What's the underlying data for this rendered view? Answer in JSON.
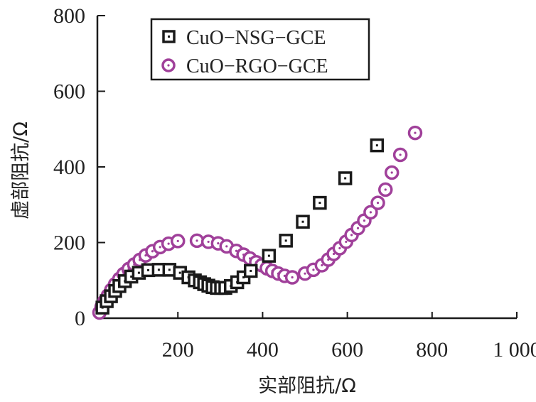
{
  "chart_data": {
    "type": "scatter",
    "title": "",
    "xlabel": "实部阻抗/Ω",
    "ylabel": "虚部阻抗/Ω",
    "xlim": [
      10,
      1000
    ],
    "ylim": [
      0,
      800
    ],
    "x_ticks": [
      200,
      400,
      600,
      800,
      1000
    ],
    "x_tick_labels": [
      "200",
      "400",
      "600",
      "800",
      "1 000"
    ],
    "y_ticks": [
      0,
      200,
      400,
      600,
      800
    ],
    "y_tick_labels": [
      "0",
      "200",
      "400",
      "600",
      "800"
    ],
    "grid": false,
    "legend_position": "top-left",
    "series": [
      {
        "name": "CuO−NSG−GCE",
        "marker": "square",
        "color": "#1a1a1a",
        "points": [
          [
            22,
            28
          ],
          [
            32,
            45
          ],
          [
            42,
            58
          ],
          [
            52,
            72
          ],
          [
            62,
            85
          ],
          [
            75,
            98
          ],
          [
            90,
            110
          ],
          [
            108,
            120
          ],
          [
            130,
            127
          ],
          [
            155,
            128
          ],
          [
            180,
            128
          ],
          [
            205,
            120
          ],
          [
            225,
            108
          ],
          [
            240,
            100
          ],
          [
            252,
            95
          ],
          [
            262,
            90
          ],
          [
            272,
            86
          ],
          [
            282,
            82
          ],
          [
            292,
            80
          ],
          [
            302,
            80
          ],
          [
            312,
            80
          ],
          [
            325,
            85
          ],
          [
            340,
            95
          ],
          [
            355,
            108
          ],
          [
            372,
            125
          ],
          [
            415,
            165
          ],
          [
            455,
            205
          ],
          [
            495,
            255
          ],
          [
            535,
            305
          ],
          [
            595,
            370
          ],
          [
            670,
            457
          ]
        ]
      },
      {
        "name": "CuO−RGO−GCE",
        "marker": "circle",
        "color": "#a0409a",
        "points": [
          [
            15,
            15
          ],
          [
            20,
            30
          ],
          [
            27,
            45
          ],
          [
            35,
            60
          ],
          [
            43,
            75
          ],
          [
            52,
            90
          ],
          [
            62,
            104
          ],
          [
            72,
            117
          ],
          [
            84,
            130
          ],
          [
            97,
            142
          ],
          [
            110,
            154
          ],
          [
            124,
            166
          ],
          [
            140,
            177
          ],
          [
            158,
            188
          ],
          [
            178,
            197
          ],
          [
            200,
            204
          ],
          [
            245,
            205
          ],
          [
            272,
            202
          ],
          [
            295,
            198
          ],
          [
            315,
            190
          ],
          [
            338,
            178
          ],
          [
            355,
            168
          ],
          [
            370,
            158
          ],
          [
            385,
            148
          ],
          [
            398,
            140
          ],
          [
            410,
            132
          ],
          [
            423,
            125
          ],
          [
            437,
            118
          ],
          [
            452,
            112
          ],
          [
            470,
            108
          ],
          [
            500,
            118
          ],
          [
            520,
            128
          ],
          [
            540,
            140
          ],
          [
            555,
            155
          ],
          [
            568,
            170
          ],
          [
            582,
            185
          ],
          [
            597,
            202
          ],
          [
            610,
            220
          ],
          [
            625,
            238
          ],
          [
            640,
            258
          ],
          [
            655,
            280
          ],
          [
            672,
            305
          ],
          [
            690,
            340
          ],
          [
            705,
            385
          ],
          [
            725,
            432
          ],
          [
            760,
            490
          ]
        ]
      }
    ]
  }
}
